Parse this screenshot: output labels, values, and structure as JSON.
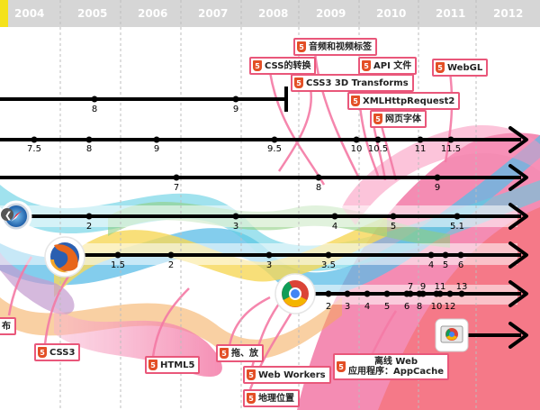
{
  "timeline": {
    "years": [
      "2004",
      "2005",
      "2006",
      "2007",
      "2008",
      "2009",
      "2010",
      "2011",
      "2012"
    ]
  },
  "html5_features": [
    {
      "id": "audio-video",
      "label": "音频和视频标签"
    },
    {
      "id": "css-transform",
      "label": "CSS的转换"
    },
    {
      "id": "api-file",
      "label": "API 文件"
    },
    {
      "id": "webgl",
      "label": "WebGL"
    },
    {
      "id": "css3d",
      "label": "CSS3 3D Transforms"
    },
    {
      "id": "xhr2",
      "label": "XMLHttpRequest2"
    },
    {
      "id": "webfonts",
      "label": "网页字体"
    },
    {
      "id": "css3",
      "label": "CSS3"
    },
    {
      "id": "html5",
      "label": "HTML5"
    },
    {
      "id": "dragdrop",
      "label": "拖、放"
    },
    {
      "id": "webworkers",
      "label": "Web Workers"
    },
    {
      "id": "geolocation",
      "label": "地理位置"
    },
    {
      "id": "appcache",
      "label": "离线 Web\n应用程序：AppCache"
    }
  ],
  "left_partial_label": "布",
  "browser_icons": [
    "safari-icon",
    "firefox-icon",
    "chrome-icon",
    "chrome-web-store-icon"
  ],
  "browser_lines": [
    {
      "id": "ie",
      "versions": [
        "8",
        "9"
      ]
    },
    {
      "id": "line2",
      "versions": [
        "7.5",
        "8",
        "9",
        "9.5",
        "10",
        "10.5",
        "11",
        "11.5"
      ]
    },
    {
      "id": "line3",
      "versions": [
        "7",
        "8",
        "9"
      ]
    },
    {
      "id": "safari",
      "versions": [
        "2",
        "3",
        "4",
        "5",
        "5.1"
      ]
    },
    {
      "id": "firefox",
      "versions": [
        "1.5",
        "2",
        "3",
        "3.5",
        "4",
        "5",
        "6"
      ]
    },
    {
      "id": "chrome",
      "versions": [
        "2",
        "3",
        "4",
        "5",
        "6",
        "7",
        "8",
        "9",
        "10",
        "11",
        "12",
        "13"
      ]
    },
    {
      "id": "chrome-web-store",
      "versions": []
    }
  ],
  "colors": {
    "html5_badge": "#e34f26",
    "tag_border": "#e9577a",
    "year_bar": "#d6d6d6",
    "year_text": "#ffffff"
  }
}
